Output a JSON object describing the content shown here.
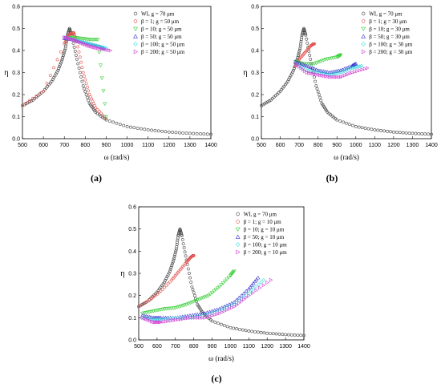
{
  "figure": {
    "captions": [
      "(a)",
      "(b)",
      "(c)"
    ]
  },
  "chart_data": [
    {
      "panel": "(a)",
      "type": "scatter",
      "xlabel": "ω (rad/s)",
      "ylabel": "η",
      "xlim": [
        500,
        1400
      ],
      "ylim": [
        0.0,
        0.6
      ],
      "xticks": [
        500,
        600,
        700,
        800,
        900,
        1000,
        1100,
        1200,
        1300,
        1400
      ],
      "yticks": [
        0.0,
        0.1,
        0.2,
        0.3,
        0.4,
        0.5,
        0.6
      ],
      "legend_position": "top-right",
      "series": [
        {
          "name": "WI, g = 70 μm",
          "color": "#444444",
          "marker": "circle",
          "x": [
            500,
            550,
            600,
            640,
            670,
            690,
            705,
            715,
            725,
            735,
            760,
            790,
            820,
            850,
            900,
            1000,
            1100,
            1200,
            1300,
            1400
          ],
          "y": [
            0.15,
            0.175,
            0.215,
            0.26,
            0.31,
            0.36,
            0.41,
            0.47,
            0.5,
            0.47,
            0.36,
            0.24,
            0.16,
            0.12,
            0.085,
            0.055,
            0.04,
            0.03,
            0.024,
            0.02
          ]
        },
        {
          "name": "β = 1; g = 50 μm",
          "color": "#e2504d",
          "marker": "circle",
          "x": [
            500,
            600,
            700,
            720,
            740,
            745,
            760,
            790,
            820,
            850,
            900
          ],
          "y": [
            0.15,
            0.215,
            0.43,
            0.47,
            0.48,
            0.48,
            0.44,
            0.3,
            0.2,
            0.14,
            0.09
          ]
        },
        {
          "name": "β = 10; g = 50 μm",
          "color": "#3fcf3f",
          "marker": "triangle-down",
          "x": [
            705,
            740,
            780,
            820,
            860,
            900
          ],
          "y": [
            0.45,
            0.46,
            0.455,
            0.45,
            0.45,
            0.1
          ]
        },
        {
          "name": "β = 50; g = 50 μm",
          "color": "#3a3ad0",
          "marker": "triangle-up",
          "x": [
            700,
            740,
            780,
            820,
            860,
            890
          ],
          "y": [
            0.455,
            0.45,
            0.44,
            0.43,
            0.42,
            0.41
          ]
        },
        {
          "name": "β = 100; g = 50 μm",
          "color": "#40dede",
          "marker": "diamond",
          "x": [
            700,
            740,
            780,
            820,
            860,
            900
          ],
          "y": [
            0.46,
            0.45,
            0.44,
            0.43,
            0.42,
            0.41
          ]
        },
        {
          "name": "β = 200; g = 50 μm",
          "color": "#d43ed4",
          "marker": "triangle-right",
          "x": [
            700,
            740,
            780,
            820,
            860,
            920
          ],
          "y": [
            0.46,
            0.45,
            0.435,
            0.42,
            0.41,
            0.4
          ]
        }
      ]
    },
    {
      "panel": "(b)",
      "type": "scatter",
      "xlabel": "ω (rad/s)",
      "ylabel": "η",
      "xlim": [
        500,
        1400
      ],
      "ylim": [
        0.0,
        0.6
      ],
      "xticks": [
        500,
        600,
        700,
        800,
        900,
        1000,
        1100,
        1200,
        1300,
        1400
      ],
      "yticks": [
        0.0,
        0.1,
        0.2,
        0.3,
        0.4,
        0.5,
        0.6
      ],
      "legend_position": "top-right",
      "series": [
        {
          "name": "WI, g = 70 μm",
          "color": "#444444",
          "marker": "circle",
          "x": [
            500,
            550,
            600,
            640,
            670,
            690,
            705,
            715,
            725,
            735,
            760,
            790,
            820,
            850,
            900,
            1000,
            1100,
            1200,
            1300,
            1400
          ],
          "y": [
            0.15,
            0.175,
            0.215,
            0.26,
            0.31,
            0.36,
            0.41,
            0.47,
            0.5,
            0.47,
            0.36,
            0.24,
            0.16,
            0.12,
            0.085,
            0.055,
            0.04,
            0.03,
            0.024,
            0.02
          ]
        },
        {
          "name": "β = 1; g = 30 μm",
          "color": "#e2504d",
          "marker": "circle",
          "x": [
            680,
            700,
            730,
            760,
            775,
            780
          ],
          "y": [
            0.33,
            0.36,
            0.39,
            0.42,
            0.43,
            0.43
          ]
        },
        {
          "name": "β = 10; g = 30 μm",
          "color": "#3fcf3f",
          "marker": "triangle-down",
          "x": [
            680,
            720,
            780,
            840,
            900,
            920
          ],
          "y": [
            0.35,
            0.34,
            0.34,
            0.36,
            0.37,
            0.38
          ]
        },
        {
          "name": "β = 50; g = 30 μm",
          "color": "#3a3ad0",
          "marker": "triangle-up",
          "x": [
            680,
            740,
            800,
            860,
            920,
            980,
            1000
          ],
          "y": [
            0.35,
            0.33,
            0.31,
            0.3,
            0.31,
            0.33,
            0.34
          ]
        },
        {
          "name": "β = 100; g = 30 μm",
          "color": "#40dede",
          "marker": "diamond",
          "x": [
            680,
            740,
            800,
            860,
            920,
            980,
            1030
          ],
          "y": [
            0.34,
            0.31,
            0.3,
            0.29,
            0.3,
            0.32,
            0.33
          ]
        },
        {
          "name": "β = 200; g = 30 μm",
          "color": "#d43ed4",
          "marker": "triangle-right",
          "x": [
            680,
            740,
            800,
            860,
            920,
            980,
            1060
          ],
          "y": [
            0.34,
            0.3,
            0.29,
            0.28,
            0.28,
            0.3,
            0.32
          ]
        }
      ]
    },
    {
      "panel": "(c)",
      "type": "scatter",
      "xlabel": "ω (rad/s)",
      "ylabel": "η",
      "xlim": [
        500,
        1400
      ],
      "ylim": [
        0.0,
        0.6
      ],
      "xticks": [
        500,
        600,
        700,
        800,
        900,
        1000,
        1100,
        1200,
        1300,
        1400
      ],
      "yticks": [
        0.0,
        0.1,
        0.2,
        0.3,
        0.4,
        0.5,
        0.6
      ],
      "legend_position": "top-right",
      "series": [
        {
          "name": "WI, g = 70 μm",
          "color": "#444444",
          "marker": "circle",
          "x": [
            500,
            550,
            600,
            640,
            670,
            690,
            705,
            715,
            725,
            735,
            760,
            790,
            820,
            850,
            900,
            1000,
            1100,
            1200,
            1300,
            1400
          ],
          "y": [
            0.15,
            0.175,
            0.215,
            0.26,
            0.31,
            0.36,
            0.41,
            0.47,
            0.5,
            0.47,
            0.36,
            0.24,
            0.16,
            0.12,
            0.085,
            0.055,
            0.04,
            0.03,
            0.024,
            0.02
          ]
        },
        {
          "name": "β = 1; g = 10 μm",
          "color": "#e2504d",
          "marker": "circle",
          "x": [
            500,
            560,
            620,
            680,
            720,
            760,
            780,
            795,
            800
          ],
          "y": [
            0.15,
            0.18,
            0.22,
            0.27,
            0.31,
            0.35,
            0.37,
            0.38,
            0.38
          ]
        },
        {
          "name": "β = 10; g = 10 μm",
          "color": "#3fcf3f",
          "marker": "triangle-down",
          "x": [
            520,
            580,
            640,
            700,
            760,
            820,
            880,
            940,
            1000,
            1020
          ],
          "y": [
            0.12,
            0.13,
            0.14,
            0.145,
            0.16,
            0.18,
            0.2,
            0.24,
            0.29,
            0.31
          ]
        },
        {
          "name": "β = 50; g = 10 μm",
          "color": "#3a3ad0",
          "marker": "triangle-up",
          "x": [
            520,
            580,
            620,
            700,
            780,
            860,
            940,
            1020,
            1100,
            1150
          ],
          "y": [
            0.11,
            0.1,
            0.1,
            0.1,
            0.11,
            0.12,
            0.14,
            0.17,
            0.23,
            0.28
          ]
        },
        {
          "name": "β = 100; g = 10 μm",
          "color": "#40dede",
          "marker": "diamond",
          "x": [
            520,
            580,
            620,
            700,
            780,
            860,
            940,
            1020,
            1100,
            1180
          ],
          "y": [
            0.1,
            0.09,
            0.09,
            0.1,
            0.1,
            0.11,
            0.13,
            0.16,
            0.21,
            0.27
          ]
        },
        {
          "name": "β = 200; g = 10 μm",
          "color": "#d43ed4",
          "marker": "triangle-right",
          "x": [
            520,
            580,
            620,
            700,
            780,
            860,
            940,
            1020,
            1100,
            1220
          ],
          "y": [
            0.1,
            0.08,
            0.08,
            0.09,
            0.1,
            0.1,
            0.12,
            0.15,
            0.2,
            0.27
          ]
        }
      ]
    }
  ]
}
